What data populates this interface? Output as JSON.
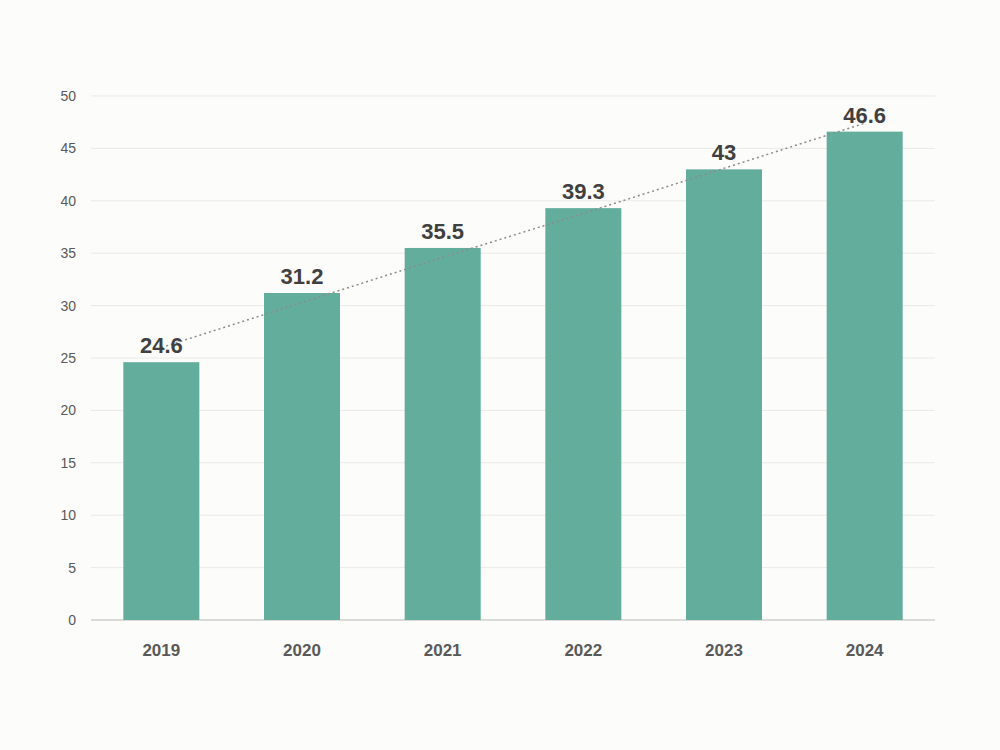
{
  "chart_data": {
    "type": "bar",
    "categories": [
      "2019",
      "2020",
      "2021",
      "2022",
      "2023",
      "2024"
    ],
    "series": [
      {
        "type": "bar",
        "color": "#62ad9c",
        "values": [
          24.6,
          31.2,
          35.5,
          39.3,
          43,
          46.6
        ]
      },
      {
        "type": "line",
        "line_style": "dotted",
        "color": "#8c8c8c",
        "values": [
          26.0,
          30.3,
          34.6,
          38.8,
          43.1,
          47.4
        ]
      }
    ],
    "ylim": [
      0,
      50
    ],
    "yticks": [
      0,
      5,
      10,
      15,
      20,
      25,
      30,
      35,
      40,
      45,
      50
    ],
    "grid": true,
    "data_labels": true
  }
}
